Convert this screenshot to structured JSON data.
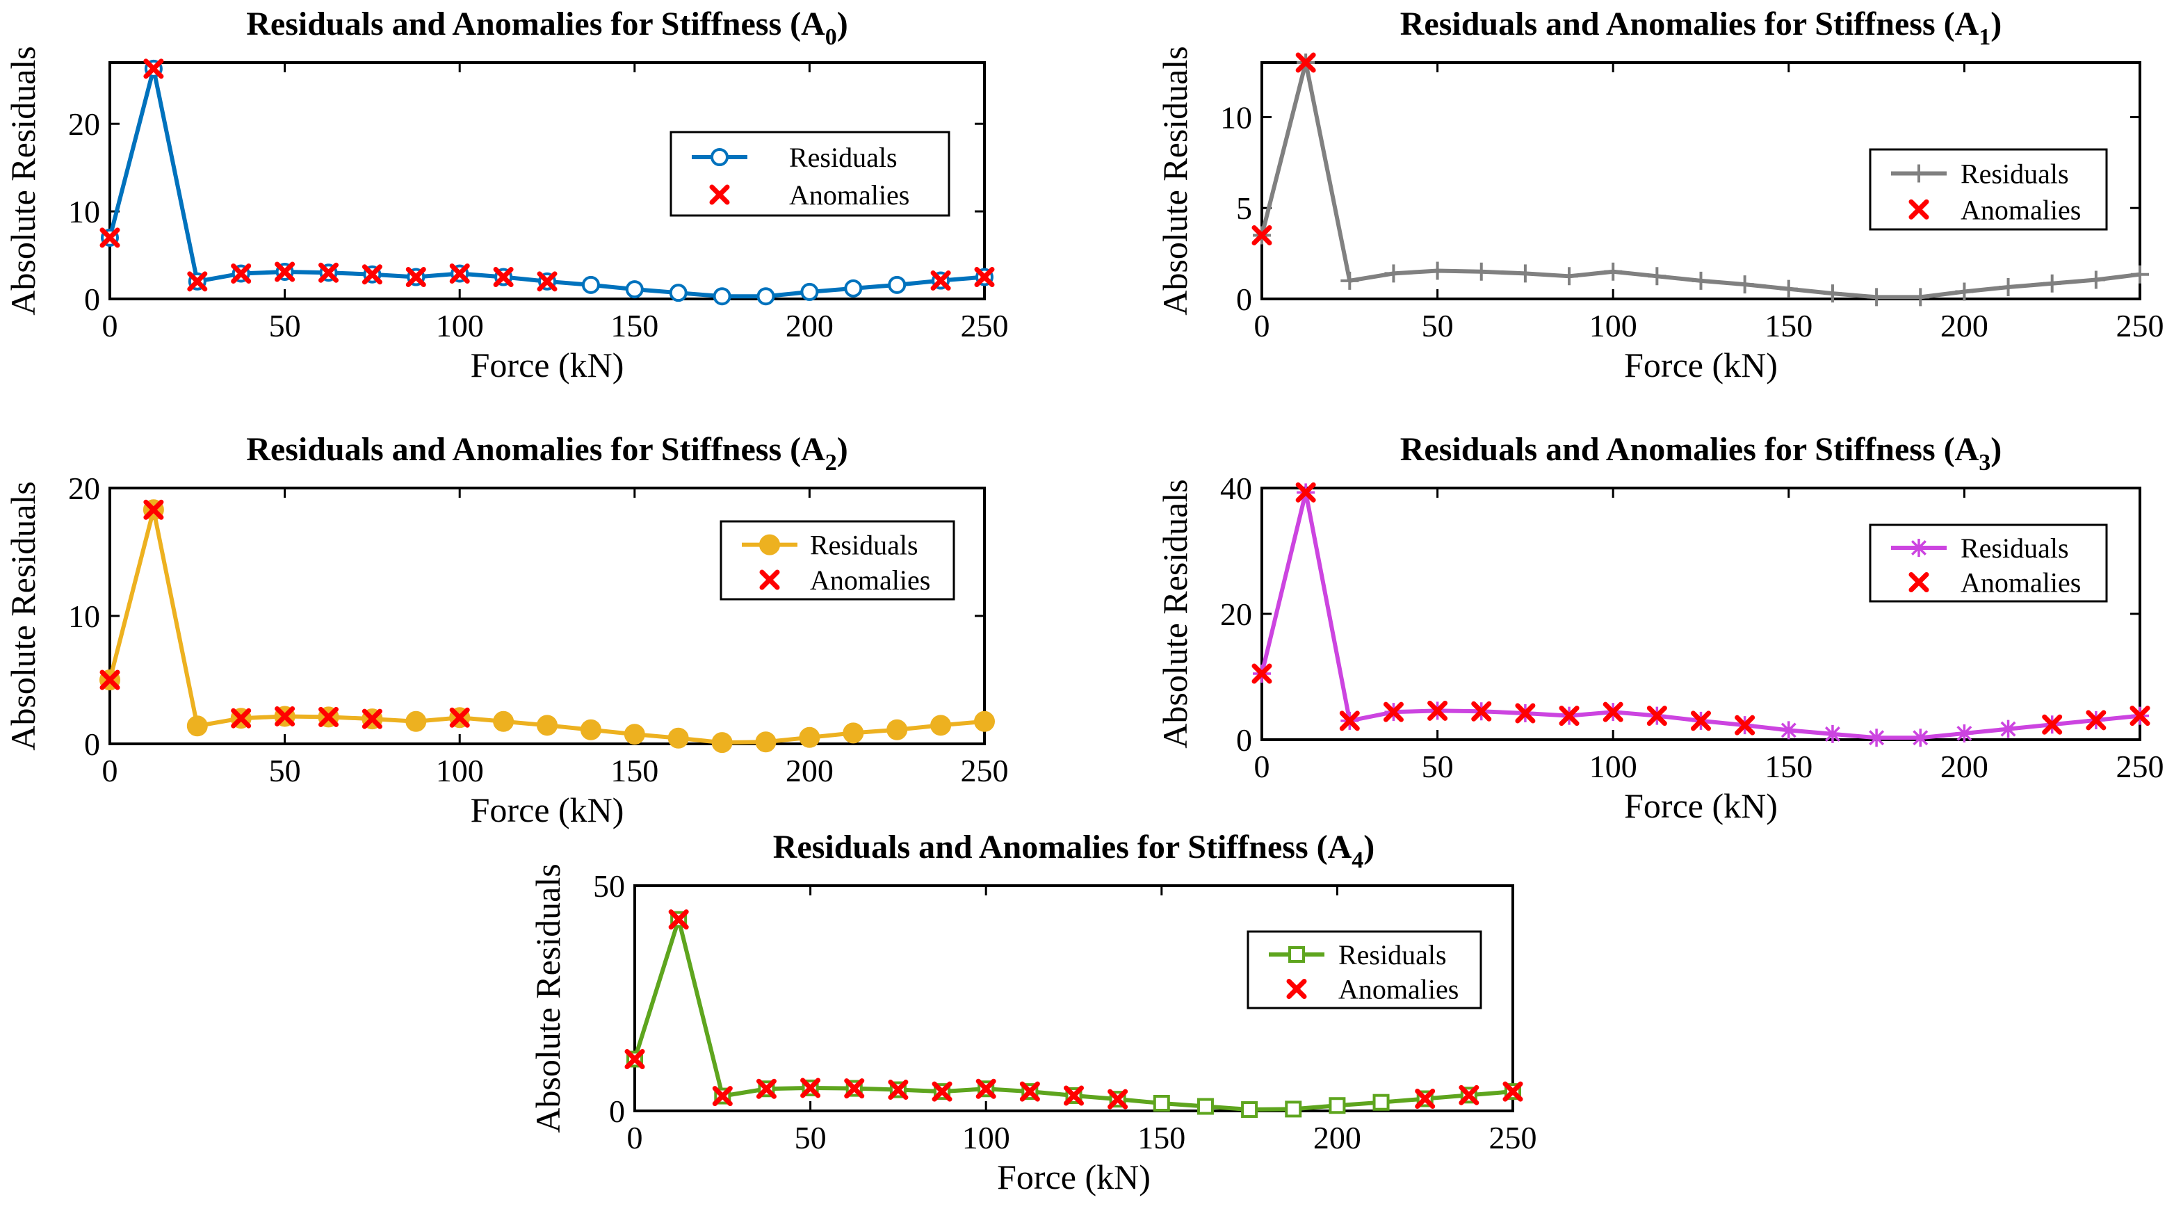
{
  "chart_data": [
    {
      "type": "line",
      "title": "Residuals and Anomalies for Stiffness (A",
      "title_sub": "0",
      "title_close": ")",
      "xlabel": "Force (kN)",
      "ylabel": "Absolute Residuals",
      "xlim": [
        0,
        250
      ],
      "ylim": [
        0,
        27
      ],
      "xticks": [
        0,
        50,
        100,
        150,
        200,
        250
      ],
      "yticks": [
        0,
        10,
        20
      ],
      "legend_position": "right",
      "series": [
        {
          "name": "Residuals",
          "color": "#0072BD",
          "marker": "circle",
          "x": [
            0,
            12.5,
            25,
            37.5,
            50,
            62.5,
            75,
            87.5,
            100,
            112.5,
            125,
            137.5,
            150,
            162.5,
            175,
            187.5,
            200,
            212.5,
            225,
            237.5,
            250
          ],
          "values": [
            7,
            26.3,
            2,
            2.9,
            3.1,
            3.0,
            2.8,
            2.5,
            2.9,
            2.5,
            2.0,
            1.6,
            1.1,
            0.7,
            0.3,
            0.3,
            0.8,
            1.2,
            1.6,
            2.1,
            2.5
          ]
        },
        {
          "name": "Anomalies",
          "color": "#FF0000",
          "marker": "x",
          "x": [
            0,
            12.5,
            25,
            37.5,
            50,
            62.5,
            75,
            87.5,
            100,
            112.5,
            125,
            237.5,
            250
          ],
          "values": [
            7,
            26.3,
            2,
            2.9,
            3.1,
            3.0,
            2.8,
            2.5,
            2.9,
            2.5,
            2.0,
            2.1,
            2.5
          ]
        }
      ]
    },
    {
      "type": "line",
      "title": "Residuals and Anomalies for Stiffness (A",
      "title_sub": "1",
      "title_close": ")",
      "xlabel": "Force (kN)",
      "ylabel": "Absolute Residuals",
      "xlim": [
        0,
        250
      ],
      "ylim": [
        0,
        13
      ],
      "xticks": [
        0,
        50,
        100,
        150,
        200,
        250
      ],
      "yticks": [
        0,
        5,
        10
      ],
      "legend_position": "bottom-right",
      "series": [
        {
          "name": "Residuals",
          "color": "#808080",
          "marker": "plus",
          "x": [
            0,
            12.5,
            25,
            37.5,
            50,
            62.5,
            75,
            87.5,
            100,
            112.5,
            125,
            137.5,
            150,
            162.5,
            175,
            187.5,
            200,
            212.5,
            225,
            237.5,
            250
          ],
          "values": [
            3.5,
            13,
            1.0,
            1.4,
            1.55,
            1.5,
            1.4,
            1.25,
            1.5,
            1.25,
            1.0,
            0.8,
            0.55,
            0.3,
            0.1,
            0.1,
            0.4,
            0.65,
            0.85,
            1.05,
            1.35
          ]
        },
        {
          "name": "Anomalies",
          "color": "#FF0000",
          "marker": "x",
          "x": [
            0,
            12.5
          ],
          "values": [
            3.5,
            13
          ]
        }
      ]
    },
    {
      "type": "line",
      "title": "Residuals and Anomalies for Stiffness (A",
      "title_sub": "2",
      "title_close": ")",
      "xlabel": "Force (kN)",
      "ylabel": "Absolute Residuals",
      "xlim": [
        0,
        250
      ],
      "ylim": [
        0,
        20
      ],
      "xticks": [
        0,
        50,
        100,
        150,
        200,
        250
      ],
      "yticks": [
        0,
        10,
        20
      ],
      "legend_position": "top-right",
      "series": [
        {
          "name": "Residuals",
          "color": "#EDB120",
          "marker": "filled-circle",
          "x": [
            0,
            12.5,
            25,
            37.5,
            50,
            62.5,
            75,
            87.5,
            100,
            112.5,
            125,
            137.5,
            150,
            162.5,
            175,
            187.5,
            200,
            212.5,
            225,
            237.5,
            250
          ],
          "values": [
            5,
            18.3,
            1.4,
            2.0,
            2.15,
            2.1,
            1.95,
            1.75,
            2.05,
            1.75,
            1.45,
            1.1,
            0.75,
            0.45,
            0.1,
            0.15,
            0.5,
            0.85,
            1.1,
            1.45,
            1.75
          ]
        },
        {
          "name": "Anomalies",
          "color": "#FF0000",
          "marker": "x",
          "x": [
            0,
            12.5,
            37.5,
            50,
            62.5,
            75,
            100
          ],
          "values": [
            5,
            18.3,
            2.0,
            2.15,
            2.1,
            1.95,
            2.05
          ]
        }
      ]
    },
    {
      "type": "line",
      "title": "Residuals and Anomalies for Stiffness (A",
      "title_sub": "3",
      "title_close": ")",
      "xlabel": "Force (kN)",
      "ylabel": "Absolute Residuals",
      "xlim": [
        0,
        250
      ],
      "ylim": [
        0,
        40
      ],
      "xticks": [
        0,
        50,
        100,
        150,
        200,
        250
      ],
      "yticks": [
        0,
        20,
        40
      ],
      "legend_position": "top-right",
      "series": [
        {
          "name": "Residuals",
          "color": "#CC44E0",
          "marker": "asterisk",
          "x": [
            0,
            12.5,
            25,
            37.5,
            50,
            62.5,
            75,
            87.5,
            100,
            112.5,
            125,
            137.5,
            150,
            162.5,
            175,
            187.5,
            200,
            212.5,
            225,
            237.5,
            250
          ],
          "values": [
            10.5,
            39.3,
            3.0,
            4.4,
            4.6,
            4.5,
            4.2,
            3.8,
            4.4,
            3.8,
            3.0,
            2.3,
            1.5,
            0.9,
            0.3,
            0.3,
            1.0,
            1.7,
            2.4,
            3.1,
            3.8
          ]
        },
        {
          "name": "Anomalies",
          "color": "#FF0000",
          "marker": "x",
          "x": [
            0,
            12.5,
            25,
            37.5,
            50,
            62.5,
            75,
            87.5,
            100,
            112.5,
            125,
            137.5,
            225,
            237.5,
            250
          ],
          "values": [
            10.5,
            39.3,
            3.0,
            4.4,
            4.6,
            4.5,
            4.2,
            3.8,
            4.4,
            3.8,
            3.0,
            2.3,
            2.4,
            3.1,
            3.8
          ]
        }
      ]
    },
    {
      "type": "line",
      "title": "Residuals and Anomalies for Stiffness (A",
      "title_sub": "4",
      "title_close": ")",
      "xlabel": "Force (kN)",
      "ylabel": "Absolute Residuals",
      "xlim": [
        0,
        250
      ],
      "ylim": [
        0,
        50
      ],
      "xticks": [
        0,
        50,
        100,
        150,
        200,
        250
      ],
      "yticks": [
        0,
        50
      ],
      "legend_position": "top-right",
      "series": [
        {
          "name": "Residuals",
          "color": "#5EA51E",
          "marker": "square",
          "x": [
            0,
            12.5,
            25,
            37.5,
            50,
            62.5,
            75,
            87.5,
            100,
            112.5,
            125,
            137.5,
            150,
            162.5,
            175,
            187.5,
            200,
            212.5,
            225,
            237.5,
            250
          ],
          "values": [
            11.5,
            42.5,
            3.3,
            4.9,
            5.1,
            5.0,
            4.7,
            4.3,
            4.9,
            4.3,
            3.4,
            2.6,
            1.7,
            1.0,
            0.3,
            0.4,
            1.2,
            1.9,
            2.7,
            3.5,
            4.3
          ]
        },
        {
          "name": "Anomalies",
          "color": "#FF0000",
          "marker": "x",
          "x": [
            0,
            12.5,
            25,
            37.5,
            50,
            62.5,
            75,
            87.5,
            100,
            112.5,
            125,
            137.5,
            225,
            237.5,
            250
          ],
          "values": [
            11.5,
            42.5,
            3.3,
            4.9,
            5.1,
            5.0,
            4.7,
            4.3,
            4.9,
            4.3,
            3.4,
            2.6,
            2.7,
            3.5,
            4.3
          ]
        }
      ]
    }
  ]
}
